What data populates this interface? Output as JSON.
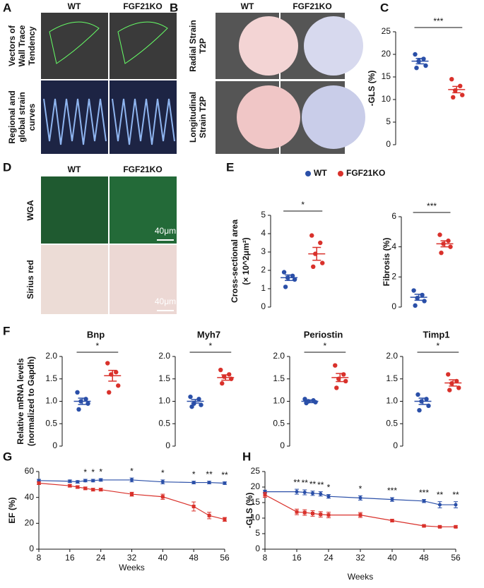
{
  "figure": {
    "panels": [
      "A",
      "B",
      "C",
      "D",
      "E",
      "F",
      "G",
      "H"
    ],
    "a": {
      "columns": [
        "WT",
        "FGF21KO"
      ],
      "rows": [
        [
          "Vectors of",
          "Wall Trace",
          "Tendency"
        ],
        [
          "Regional and",
          "global strain",
          "curves"
        ]
      ]
    },
    "b": {
      "columns": [
        "WT",
        "FGF21KO"
      ],
      "rows": [
        [
          "Radial Strain",
          "T2P"
        ],
        [
          "Longitudinal",
          "Strain T2P"
        ]
      ]
    },
    "d": {
      "columns": [
        "WT",
        "FGF21KO"
      ],
      "rows": [
        [
          "WGA"
        ],
        [
          "Sirius red"
        ]
      ],
      "scale_bars": [
        "40μm",
        "40μm"
      ]
    }
  },
  "chart_data": [
    {
      "type": "dotplot",
      "ylabel": [
        "-GLS (%)"
      ],
      "ylim": [
        0,
        25
      ],
      "yticks": [
        0,
        5,
        10,
        15,
        20,
        25
      ],
      "significance": "***",
      "series": [
        {
          "color": "#2a4fa8",
          "values": [
            20,
            19,
            18.5,
            17.5,
            17
          ],
          "mean": 18.5,
          "sem": 0.6
        },
        {
          "color": "#d9312b",
          "values": [
            14.5,
            13,
            12,
            11,
            10.5
          ],
          "mean": 12.2,
          "sem": 0.7
        }
      ]
    },
    {
      "type": "dotplot",
      "ylabel": [
        "Cross-sectional area",
        "(× 10^2μm²)"
      ],
      "ylim": [
        0,
        5
      ],
      "yticks": [
        0,
        1,
        2,
        3,
        4,
        5
      ],
      "significance": "*",
      "series": [
        {
          "name": "WT",
          "color": "#2a4fa8",
          "values": [
            1.9,
            1.7,
            1.6,
            1.5,
            1.1
          ],
          "mean": 1.6,
          "sem": 0.15
        },
        {
          "name": "FGF21KO",
          "color": "#d9312b",
          "values": [
            3.9,
            3.5,
            2.9,
            2.4,
            2.2
          ],
          "mean": 2.9,
          "sem": 0.35
        }
      ]
    },
    {
      "type": "dotplot",
      "ylabel": [
        "Fibrosis (%)"
      ],
      "ylim": [
        0,
        6
      ],
      "yticks": [
        0,
        2,
        4,
        6
      ],
      "significance": "***",
      "series": [
        {
          "color": "#2a4fa8",
          "values": [
            1.1,
            0.8,
            0.6,
            0.4,
            0.1
          ],
          "mean": 0.65,
          "sem": 0.2
        },
        {
          "color": "#d9312b",
          "values": [
            4.8,
            4.4,
            4.2,
            4.0,
            3.6
          ],
          "mean": 4.2,
          "sem": 0.2
        }
      ]
    },
    {
      "type": "dotplot",
      "title": "Bnp",
      "ylabel": [
        "Relative mRNA levels",
        "(normalized to Gapdh)"
      ],
      "ylim": [
        0,
        2
      ],
      "yticks": [
        0,
        0.5,
        {
          "value": 1,
          "label": "1.0"
        },
        1.5,
        {
          "value": 2,
          "label": "2.0"
        }
      ],
      "significance": "*",
      "series": [
        {
          "color": "#2a4fa8",
          "values": [
            1.2,
            1.05,
            1.0,
            0.95,
            0.82
          ],
          "mean": 1.0,
          "sem": 0.07
        },
        {
          "color": "#d9312b",
          "values": [
            1.85,
            1.65,
            1.6,
            1.35,
            1.2
          ],
          "mean": 1.57,
          "sem": 0.12
        }
      ]
    },
    {
      "type": "dotplot",
      "title": "Myh7",
      "ylim": [
        0,
        2
      ],
      "yticks": [
        0,
        0.5,
        {
          "value": 1,
          "label": "1.0"
        },
        1.5,
        {
          "value": 2,
          "label": "2.0"
        }
      ],
      "significance": "*",
      "series": [
        {
          "color": "#2a4fa8",
          "values": [
            1.1,
            1.05,
            0.95,
            0.92,
            0.88
          ],
          "mean": 1.0,
          "sem": 0.04
        },
        {
          "color": "#d9312b",
          "values": [
            1.7,
            1.6,
            1.55,
            1.5,
            1.4
          ],
          "mean": 1.53,
          "sem": 0.06
        }
      ]
    },
    {
      "type": "dotplot",
      "title": "Periostin",
      "ylim": [
        0,
        2
      ],
      "yticks": [
        0,
        0.5,
        {
          "value": 1,
          "label": "1.0"
        },
        1.5,
        {
          "value": 2,
          "label": "2.0"
        }
      ],
      "significance": "*",
      "series": [
        {
          "color": "#2a4fa8",
          "values": [
            1.05,
            1.02,
            1.0,
            0.98,
            0.96
          ],
          "mean": 1.0,
          "sem": 0.03
        },
        {
          "color": "#d9312b",
          "values": [
            1.8,
            1.6,
            1.5,
            1.45,
            1.3
          ],
          "mean": 1.53,
          "sem": 0.09
        }
      ]
    },
    {
      "type": "dotplot",
      "title": "Timp1",
      "ylim": [
        0,
        2
      ],
      "yticks": [
        0,
        0.5,
        {
          "value": 1,
          "label": "1.0"
        },
        1.5,
        {
          "value": 2,
          "label": "2.0"
        }
      ],
      "significance": "*",
      "series": [
        {
          "color": "#2a4fa8",
          "values": [
            1.15,
            1.05,
            1.0,
            0.9,
            0.8
          ],
          "mean": 1.0,
          "sem": 0.07
        },
        {
          "color": "#d9312b",
          "values": [
            1.6,
            1.45,
            1.4,
            1.3,
            1.25
          ],
          "mean": 1.41,
          "sem": 0.07
        }
      ]
    },
    {
      "type": "line",
      "xlabel": "Weeks",
      "ylabel": "EF (%)",
      "x": [
        8,
        16,
        18,
        20,
        22,
        24,
        32,
        40,
        48,
        52,
        56
      ],
      "xlim": [
        8,
        56
      ],
      "xticks": [
        8,
        16,
        24,
        32,
        40,
        48,
        56
      ],
      "ylim": [
        0,
        60
      ],
      "yticks": [
        0,
        20,
        40,
        60
      ],
      "series": [
        {
          "color": "#2a4fa8",
          "marker": "circle",
          "values": [
            53,
            52.5,
            52,
            53,
            53,
            53.5,
            53.5,
            52,
            51.5,
            51.5,
            51
          ],
          "errors": [
            1,
            1,
            1,
            1,
            1,
            1,
            1.5,
            1.5,
            1,
            1,
            1
          ]
        },
        {
          "color": "#d9312b",
          "marker": "square",
          "values": [
            51,
            49,
            48,
            47,
            46,
            46,
            42.5,
            40.5,
            33,
            26,
            23
          ],
          "errors": [
            1,
            1,
            1,
            1,
            1,
            1,
            1.5,
            2,
            3.5,
            2.5,
            1.5
          ]
        }
      ],
      "annotations": [
        {
          "x": 20,
          "text": "*"
        },
        {
          "x": 22,
          "text": "*"
        },
        {
          "x": 24,
          "text": "*"
        },
        {
          "x": 32,
          "text": "*"
        },
        {
          "x": 40,
          "text": "*"
        },
        {
          "x": 48,
          "text": "*"
        },
        {
          "x": 52,
          "text": "**"
        },
        {
          "x": 56,
          "text": "**"
        }
      ]
    },
    {
      "type": "line",
      "xlabel": "Weeks",
      "ylabel": "-GLS (%)",
      "x": [
        8,
        16,
        18,
        20,
        22,
        24,
        32,
        40,
        48,
        52,
        56
      ],
      "xlim": [
        8,
        56
      ],
      "xticks": [
        8,
        16,
        24,
        32,
        40,
        48,
        56
      ],
      "ylim": [
        0,
        25
      ],
      "yticks": [
        0,
        5,
        10,
        15,
        20,
        25
      ],
      "series": [
        {
          "color": "#2a4fa8",
          "marker": "circle",
          "values": [
            18.5,
            18.5,
            18.3,
            18,
            17.8,
            17,
            16.5,
            16,
            15.5,
            14.3,
            14.3
          ],
          "errors": [
            0.5,
            0.8,
            0.8,
            0.7,
            0.7,
            0.6,
            0.7,
            0.6,
            0.5,
            1,
            1
          ]
        },
        {
          "color": "#d9312b",
          "marker": "square",
          "values": [
            17.5,
            12,
            11.8,
            11.5,
            11.2,
            11,
            11,
            9.2,
            7.5,
            7.2,
            7.2
          ],
          "errors": [
            0.8,
            0.9,
            0.9,
            0.9,
            0.9,
            0.9,
            0.8,
            0.4,
            0.3,
            0.3,
            0.3
          ]
        }
      ],
      "annotations": [
        {
          "x": 16,
          "text": "**"
        },
        {
          "x": 18,
          "text": "**"
        },
        {
          "x": 20,
          "text": "**"
        },
        {
          "x": 22,
          "text": "**"
        },
        {
          "x": 24,
          "text": "*"
        },
        {
          "x": 32,
          "text": "*"
        },
        {
          "x": 40,
          "text": "***"
        },
        {
          "x": 48,
          "text": "***"
        },
        {
          "x": 52,
          "text": "**"
        },
        {
          "x": 56,
          "text": "**"
        }
      ]
    }
  ]
}
